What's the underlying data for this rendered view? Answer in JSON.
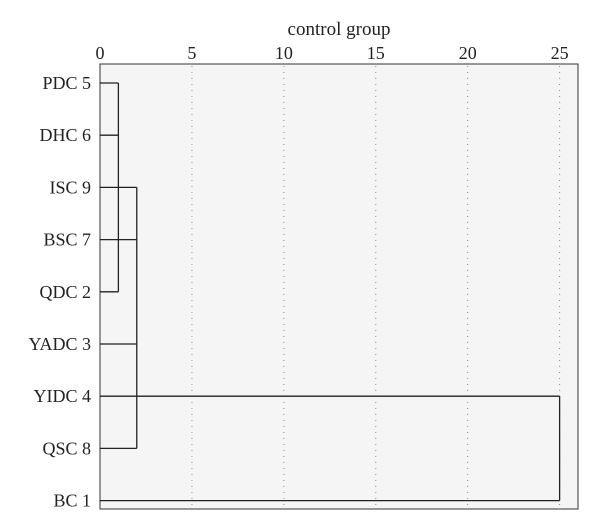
{
  "chart_data": {
    "type": "dendrogram",
    "title": "control group",
    "xlim": [
      0,
      26
    ],
    "xticks": [
      "0",
      "5",
      "10",
      "15",
      "20",
      "25"
    ],
    "grid": "vertical dotted lines",
    "leaves": [
      "PDC 5",
      "DHC 6",
      "ISC 9",
      "BSC 7",
      "QDC 2",
      "YADC 3",
      "YIDC 4",
      "QSC 8",
      "BC 1"
    ],
    "merges": [
      {
        "members": [
          "PDC 5",
          "DHC 6",
          "ISC 9",
          "QDC 2"
        ],
        "height": 1
      },
      {
        "members": [
          "cluster 1",
          "BSC 7",
          "YADC 3",
          "QSC 8"
        ],
        "height": 2
      },
      {
        "members": [
          "YIDC 4",
          "BC 1"
        ],
        "height": 25
      }
    ]
  },
  "colors": {
    "plot_background": "#f5f5f5",
    "frame": "#333333",
    "grid": "#888888",
    "tree": "#222222",
    "text": "#222222"
  }
}
